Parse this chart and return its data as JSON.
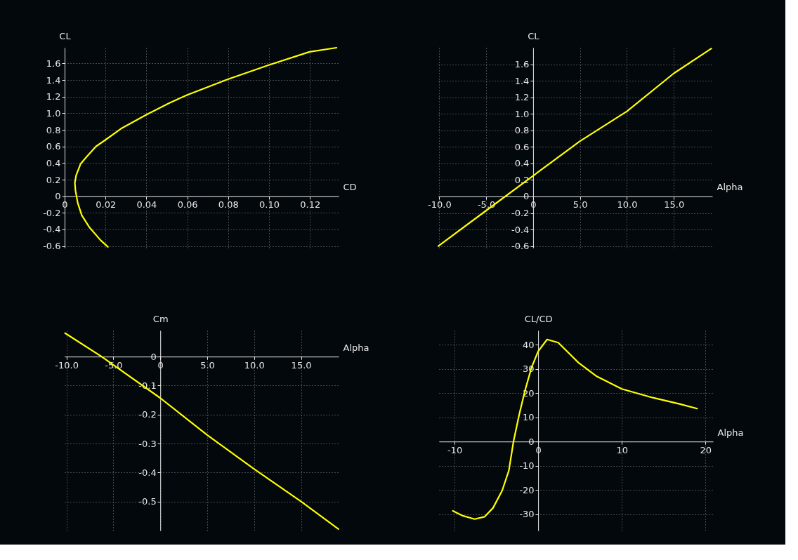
{
  "chart_data": [
    {
      "type": "line",
      "xlabel": "CD",
      "ylabel": "CL",
      "grid": true,
      "series": [
        {
          "color": "#ffff00",
          "x": [
            0.0212,
            0.0176,
            0.012,
            0.0084,
            0.0064,
            0.0053,
            0.005,
            0.0056,
            0.0078,
            0.0109,
            0.0153,
            0.02,
            0.0276,
            0.0398,
            0.0509,
            0.0598,
            0.0798,
            0.0998,
            0.1198,
            0.133
          ],
          "values": [
            -0.61,
            -0.53,
            -0.37,
            -0.23,
            -0.08,
            0.07,
            0.16,
            0.25,
            0.39,
            0.48,
            0.6,
            0.68,
            0.815,
            0.98,
            1.12,
            1.22,
            1.41,
            1.58,
            1.74,
            1.79
          ]
        }
      ],
      "xlim": [
        0,
        0.134
      ],
      "ylim": [
        -0.62,
        1.79
      ],
      "xticks": [
        0,
        0.02,
        0.04,
        0.06,
        0.08,
        {
          "value": 0.1,
          "label": "0.10"
        },
        0.12
      ],
      "yticks": [
        -0.6,
        -0.4,
        -0.2,
        0,
        0.2,
        0.4,
        0.6,
        0.8,
        {
          "value": 1,
          "label": "1.0"
        },
        1.2,
        1.4,
        1.6
      ]
    },
    {
      "type": "line",
      "xlabel": "Alpha",
      "ylabel": "CL",
      "grid": true,
      "series": [
        {
          "color": "#ffff00",
          "x": [
            -10.1,
            -5,
            0,
            5,
            10,
            15,
            19
          ],
          "values": [
            -0.6,
            -0.17,
            0.25,
            0.67,
            1.03,
            1.49,
            1.79
          ]
        }
      ],
      "xlim": [
        -10.1,
        19.1
      ],
      "ylim": [
        -0.62,
        1.8
      ],
      "xticks": [
        {
          "value": -10,
          "label": "-10.0"
        },
        {
          "value": -5,
          "label": "-5.0"
        },
        0,
        {
          "value": 5,
          "label": "5.0"
        },
        {
          "value": 10,
          "label": "10.0"
        },
        {
          "value": 15,
          "label": "15.0"
        }
      ],
      "yticks": [
        -0.6,
        -0.4,
        -0.2,
        0,
        0.2,
        0.4,
        0.6,
        0.8,
        {
          "value": 1,
          "label": "1.0"
        },
        1.2,
        1.4,
        1.6
      ]
    },
    {
      "type": "line",
      "xlabel": "Alpha",
      "ylabel": "Cm",
      "grid": true,
      "series": [
        {
          "color": "#ffff00",
          "x": [
            -10.15,
            -6.26,
            0,
            5.02,
            10,
            15,
            18.98
          ],
          "values": [
            0.081,
            0,
            -0.143,
            -0.271,
            -0.388,
            -0.5,
            -0.595
          ]
        }
      ],
      "xlim": [
        -10.2,
        19.0
      ],
      "ylim": [
        -0.6,
        0.09
      ],
      "xticks": [
        {
          "value": -10,
          "label": "-10.0"
        },
        {
          "value": -5,
          "label": "-5.0"
        },
        0,
        {
          "value": 5,
          "label": "5.0"
        },
        {
          "value": 10,
          "label": "10.0"
        },
        {
          "value": 15,
          "label": "15.0"
        }
      ],
      "yticks": [
        -0.5,
        -0.4,
        -0.3,
        -0.2,
        -0.1,
        0
      ]
    },
    {
      "type": "line",
      "xlabel": "Alpha",
      "ylabel": "CL/CD",
      "grid": true,
      "series": [
        {
          "color": "#ffff00",
          "x": [
            -10.2,
            -9.1,
            -7.6,
            -6.4,
            -5.4,
            -4.3,
            -3.5,
            -2.95,
            -2.28,
            -1.6,
            -0.8,
            0,
            1.07,
            2.4,
            4.8,
            7.0,
            10,
            13.7,
            16.9,
            19.0
          ],
          "values": [
            -28.6,
            -30.5,
            -32.0,
            -31.0,
            -27.4,
            -20.2,
            -11.9,
            0,
            10.9,
            20.7,
            30.5,
            37.2,
            42.1,
            40.8,
            32.6,
            26.9,
            21.7,
            18.1,
            15.5,
            13.6
          ]
        }
      ],
      "xlim": [
        -11.85,
        20.9
      ],
      "ylim": [
        -36.7,
        45.8
      ],
      "xticks": [
        -10,
        0,
        10,
        20
      ],
      "yticks": [
        -30,
        -20,
        -10,
        0,
        10,
        20,
        30,
        40
      ]
    }
  ]
}
